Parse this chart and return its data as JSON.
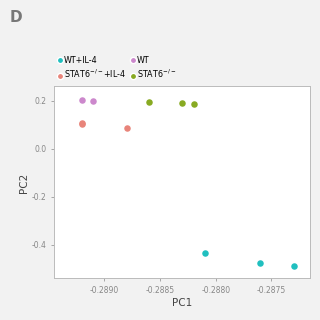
{
  "title_label": "D",
  "xlabel": "PC1",
  "ylabel": "PC2",
  "xlim": [
    -0.28945,
    -0.28715
  ],
  "ylim": [
    -0.54,
    0.26
  ],
  "xticks": [
    -0.289,
    -0.2885,
    -0.288,
    -0.2875
  ],
  "yticks": [
    0.2,
    0.0,
    -0.2,
    -0.4
  ],
  "fig_bg": "#f2f2f2",
  "ax_bg": "white",
  "series": [
    {
      "label": "WT+IL-4",
      "color": "#20BFBF",
      "points": [
        [
          -0.2881,
          -0.435
        ],
        [
          -0.2876,
          -0.475
        ],
        [
          -0.2873,
          -0.49
        ]
      ],
      "marker": "o",
      "size": 22
    },
    {
      "label": "STAT6$^{-/-}$+IL-4",
      "color": "#E8847A",
      "points": [
        [
          -0.2892,
          0.108
        ],
        [
          -0.2892,
          0.102
        ],
        [
          -0.2888,
          0.088
        ]
      ],
      "marker": "o",
      "size": 22
    },
    {
      "label": "WT",
      "color": "#CC88CC",
      "points": [
        [
          -0.2892,
          0.204
        ],
        [
          -0.2891,
          0.199
        ]
      ],
      "marker": "o",
      "size": 22
    },
    {
      "label": "STAT6$^{-/-}$",
      "color": "#88AA22",
      "points": [
        [
          -0.2886,
          0.196
        ],
        [
          -0.2883,
          0.192
        ],
        [
          -0.2882,
          0.186
        ]
      ],
      "marker": "o",
      "size": 22
    }
  ],
  "legend": [
    {
      "label": "WT+IL-4",
      "color": "#20BFBF"
    },
    {
      "label": "STAT6$^{-/-}$+IL-4",
      "color": "#E8847A"
    },
    {
      "label": "WT",
      "color": "#CC88CC"
    },
    {
      "label": "STAT6$^{-/-}$",
      "color": "#88AA22"
    }
  ]
}
